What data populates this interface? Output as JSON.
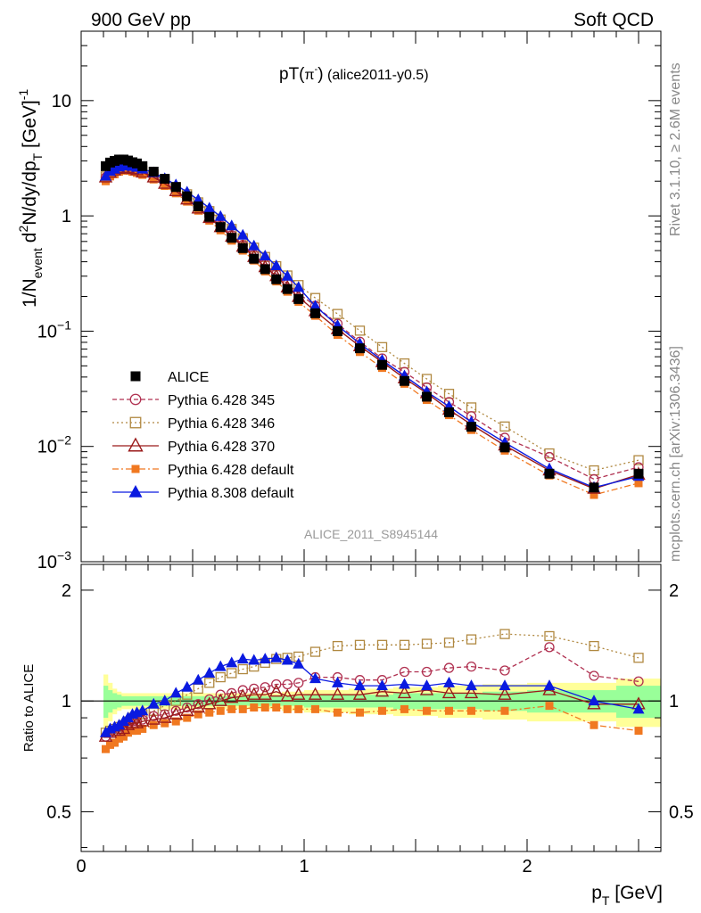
{
  "header": {
    "left": "900 GeV pp",
    "right": "Soft QCD"
  },
  "side_labels": {
    "rivet": "Rivet 3.1.10, ≥ 2.6M events",
    "mcplots": "mcplots.cern.ch [arXiv:1306.3436]"
  },
  "colors": {
    "alice": "#000000",
    "p345": "#b03050",
    "p346": "#b08840",
    "p370": "#9a1a1a",
    "p6def": "#f07820",
    "p8def": "#0a1ae0",
    "band_yellow": "#ffff99",
    "band_green": "#99ff99"
  },
  "chart_data": [
    {
      "type": "line",
      "title": "pT(π⁻) (alice2011-y0.5)",
      "title_parts": {
        "main": "pT(",
        "particle": "π",
        "charge": "-",
        "close": ")",
        "tag": " (alice2011-y0.5)"
      },
      "ylabel": "1/N_event d²N/dy/dp_T [GeV]⁻¹",
      "ylabel_parts": {
        "a": "1/N",
        "b": "event",
        "c": " d",
        "d": "2",
        "e": "N/dy/dp",
        "f": "T",
        "g": " [GeV]",
        "h": "-1"
      },
      "yscale": "log",
      "ylim": [
        0.001,
        40
      ],
      "xlim": [
        0,
        2.6
      ],
      "yticks": [
        {
          "value": 10,
          "label": "10"
        },
        {
          "value": 1,
          "label": "1"
        },
        {
          "value": 0.1,
          "base": "10",
          "exp": "−1"
        },
        {
          "value": 0.01,
          "base": "10",
          "exp": "−2"
        },
        {
          "value": 0.001,
          "base": "10",
          "exp": "−3"
        }
      ],
      "watermark": "ALICE_2011_S8945144",
      "legend_position": "middle-left",
      "x": [
        0.11,
        0.13,
        0.15,
        0.17,
        0.19,
        0.21,
        0.23,
        0.25,
        0.275,
        0.325,
        0.375,
        0.425,
        0.475,
        0.525,
        0.575,
        0.625,
        0.675,
        0.725,
        0.775,
        0.825,
        0.875,
        0.925,
        0.975,
        1.05,
        1.15,
        1.25,
        1.35,
        1.45,
        1.55,
        1.65,
        1.75,
        1.9,
        2.1,
        2.3,
        2.5
      ],
      "series": [
        {
          "name": "ALICE",
          "key": "alice",
          "values": [
            2.7,
            2.9,
            3.0,
            3.08,
            3.08,
            3.02,
            2.92,
            2.85,
            2.7,
            2.42,
            2.1,
            1.78,
            1.48,
            1.21,
            0.98,
            0.8,
            0.645,
            0.525,
            0.425,
            0.345,
            0.282,
            0.232,
            0.19,
            0.143,
            0.1,
            0.071,
            0.051,
            0.037,
            0.027,
            0.0198,
            0.0148,
            0.0098,
            0.0058,
            0.0044,
            0.0058
          ]
        },
        {
          "name": "Pythia 6.428 345",
          "key": "p345",
          "values": [
            2.16,
            2.38,
            2.49,
            2.58,
            2.62,
            2.62,
            2.58,
            2.5,
            2.41,
            2.2,
            1.94,
            1.68,
            1.42,
            1.19,
            0.99,
            0.83,
            0.68,
            0.56,
            0.46,
            0.38,
            0.314,
            0.258,
            0.212,
            0.166,
            0.116,
            0.081,
            0.058,
            0.0443,
            0.0325,
            0.0243,
            0.0183,
            0.0119,
            0.0081,
            0.0052,
            0.0066
          ]
        },
        {
          "name": "Pythia 6.428 346",
          "key": "p346",
          "values": [
            2.2,
            2.4,
            2.52,
            2.62,
            2.66,
            2.66,
            2.63,
            2.57,
            2.48,
            2.28,
            2.03,
            1.78,
            1.54,
            1.31,
            1.1,
            0.93,
            0.77,
            0.64,
            0.53,
            0.44,
            0.366,
            0.304,
            0.251,
            0.194,
            0.141,
            0.101,
            0.0727,
            0.0525,
            0.0385,
            0.0286,
            0.0218,
            0.0149,
            0.0087,
            0.0062,
            0.0076
          ]
        },
        {
          "name": "Pythia 6.428 370",
          "key": "p370",
          "values": [
            2.16,
            2.37,
            2.48,
            2.56,
            2.6,
            2.6,
            2.55,
            2.49,
            2.38,
            2.16,
            1.9,
            1.64,
            1.39,
            1.16,
            0.96,
            0.8,
            0.66,
            0.54,
            0.44,
            0.36,
            0.3,
            0.24,
            0.198,
            0.149,
            0.104,
            0.074,
            0.054,
            0.039,
            0.029,
            0.0208,
            0.0155,
            0.0102,
            0.0062,
            0.0043,
            0.0057
          ]
        },
        {
          "name": "Pythia 6.428 default",
          "key": "p6def",
          "values": [
            2.0,
            2.2,
            2.3,
            2.42,
            2.47,
            2.47,
            2.42,
            2.36,
            2.27,
            2.07,
            1.82,
            1.57,
            1.33,
            1.11,
            0.91,
            0.75,
            0.61,
            0.5,
            0.41,
            0.33,
            0.27,
            0.22,
            0.18,
            0.136,
            0.093,
            0.066,
            0.048,
            0.035,
            0.0253,
            0.0187,
            0.0139,
            0.0092,
            0.0056,
            0.0038,
            0.0048
          ]
        },
        {
          "name": "Pythia 8.308 default",
          "key": "p8def",
          "values": [
            2.21,
            2.43,
            2.55,
            2.66,
            2.71,
            2.72,
            2.69,
            2.64,
            2.55,
            2.37,
            2.11,
            1.86,
            1.61,
            1.38,
            1.17,
            0.99,
            0.82,
            0.68,
            0.55,
            0.45,
            0.37,
            0.3,
            0.24,
            0.165,
            0.112,
            0.078,
            0.056,
            0.041,
            0.0298,
            0.0222,
            0.0163,
            0.0108,
            0.0064,
            0.0044,
            0.0055
          ]
        }
      ]
    },
    {
      "type": "line",
      "ylabel": "Ratio to ALICE",
      "xlabel": "p_T [GeV]",
      "xlabel_parts": {
        "a": "p",
        "b": "T",
        "c": " [GeV]"
      },
      "yscale": "log",
      "ylim": [
        0.39,
        2.35
      ],
      "xlim": [
        0,
        2.6
      ],
      "yticks": [
        {
          "value": 2,
          "label": "2"
        },
        {
          "value": 1,
          "label": "1"
        },
        {
          "value": 0.5,
          "label": "0.5"
        }
      ],
      "xticks": [
        {
          "value": 0,
          "label": "0"
        },
        {
          "value": 1,
          "label": "1"
        },
        {
          "value": 2,
          "label": "2"
        }
      ],
      "reference_line": 1,
      "bands": {
        "x_edges": [
          0.1,
          0.12,
          0.14,
          0.16,
          0.18,
          0.2,
          0.22,
          0.24,
          0.26,
          0.3,
          0.35,
          0.4,
          0.45,
          0.5,
          0.55,
          0.6,
          0.65,
          0.7,
          0.75,
          0.8,
          0.85,
          0.9,
          0.95,
          1.0,
          1.1,
          1.2,
          1.3,
          1.4,
          1.5,
          1.6,
          1.7,
          1.8,
          2.0,
          2.2,
          2.4,
          2.6
        ],
        "yellow_half": [
          0.18,
          0.12,
          0.08,
          0.06,
          0.05,
          0.05,
          0.05,
          0.05,
          0.05,
          0.05,
          0.05,
          0.05,
          0.05,
          0.05,
          0.05,
          0.05,
          0.05,
          0.05,
          0.05,
          0.05,
          0.05,
          0.06,
          0.06,
          0.07,
          0.07,
          0.08,
          0.08,
          0.09,
          0.09,
          0.1,
          0.1,
          0.11,
          0.12,
          0.12,
          0.15
        ],
        "green_half": [
          0.1,
          0.07,
          0.05,
          0.04,
          0.03,
          0.03,
          0.03,
          0.03,
          0.03,
          0.03,
          0.03,
          0.03,
          0.03,
          0.03,
          0.03,
          0.03,
          0.03,
          0.03,
          0.03,
          0.03,
          0.03,
          0.03,
          0.03,
          0.04,
          0.04,
          0.04,
          0.04,
          0.05,
          0.05,
          0.05,
          0.05,
          0.06,
          0.07,
          0.07,
          0.1
        ]
      },
      "x": [
        0.11,
        0.13,
        0.15,
        0.17,
        0.19,
        0.21,
        0.23,
        0.25,
        0.275,
        0.325,
        0.375,
        0.425,
        0.475,
        0.525,
        0.575,
        0.625,
        0.675,
        0.725,
        0.775,
        0.825,
        0.875,
        0.925,
        0.975,
        1.05,
        1.15,
        1.25,
        1.35,
        1.45,
        1.55,
        1.65,
        1.75,
        1.9,
        2.1,
        2.3,
        2.5
      ],
      "series": [
        {
          "name": "Pythia 6.428 345",
          "key": "p345",
          "values": [
            0.8,
            0.82,
            0.83,
            0.84,
            0.85,
            0.87,
            0.88,
            0.88,
            0.89,
            0.91,
            0.92,
            0.94,
            0.96,
            0.98,
            1.01,
            1.04,
            1.05,
            1.07,
            1.08,
            1.09,
            1.11,
            1.11,
            1.12,
            1.16,
            1.16,
            1.14,
            1.14,
            1.2,
            1.2,
            1.23,
            1.24,
            1.21,
            1.4,
            1.17,
            1.13
          ]
        },
        {
          "name": "Pythia 6.428 346",
          "key": "p346",
          "values": [
            0.82,
            0.83,
            0.84,
            0.85,
            0.86,
            0.88,
            0.9,
            0.9,
            0.92,
            0.94,
            0.97,
            1.0,
            1.04,
            1.08,
            1.12,
            1.16,
            1.19,
            1.22,
            1.24,
            1.27,
            1.3,
            1.31,
            1.32,
            1.36,
            1.41,
            1.42,
            1.42,
            1.42,
            1.43,
            1.44,
            1.47,
            1.52,
            1.5,
            1.41,
            1.31
          ]
        },
        {
          "name": "Pythia 6.428 370",
          "key": "p370",
          "values": [
            0.8,
            0.82,
            0.83,
            0.83,
            0.84,
            0.86,
            0.87,
            0.87,
            0.88,
            0.89,
            0.9,
            0.92,
            0.94,
            0.96,
            0.98,
            1.0,
            1.02,
            1.03,
            1.04,
            1.04,
            1.06,
            1.03,
            1.04,
            1.04,
            1.04,
            1.04,
            1.06,
            1.05,
            1.07,
            1.05,
            1.05,
            1.04,
            1.07,
            0.98,
            0.98
          ]
        },
        {
          "name": "Pythia 6.428 default",
          "key": "p6def",
          "values": [
            0.74,
            0.76,
            0.77,
            0.79,
            0.8,
            0.82,
            0.83,
            0.83,
            0.84,
            0.86,
            0.87,
            0.88,
            0.9,
            0.92,
            0.93,
            0.94,
            0.95,
            0.95,
            0.96,
            0.96,
            0.96,
            0.95,
            0.95,
            0.95,
            0.93,
            0.93,
            0.94,
            0.95,
            0.94,
            0.94,
            0.94,
            0.94,
            0.97,
            0.86,
            0.83
          ]
        },
        {
          "name": "Pythia 8.308 default",
          "key": "p8def",
          "values": [
            0.82,
            0.84,
            0.85,
            0.86,
            0.88,
            0.9,
            0.92,
            0.93,
            0.94,
            0.98,
            1.0,
            1.05,
            1.09,
            1.14,
            1.19,
            1.24,
            1.27,
            1.3,
            1.29,
            1.3,
            1.31,
            1.29,
            1.26,
            1.15,
            1.12,
            1.1,
            1.1,
            1.11,
            1.1,
            1.12,
            1.1,
            1.1,
            1.1,
            1.0,
            0.95
          ]
        }
      ]
    }
  ]
}
